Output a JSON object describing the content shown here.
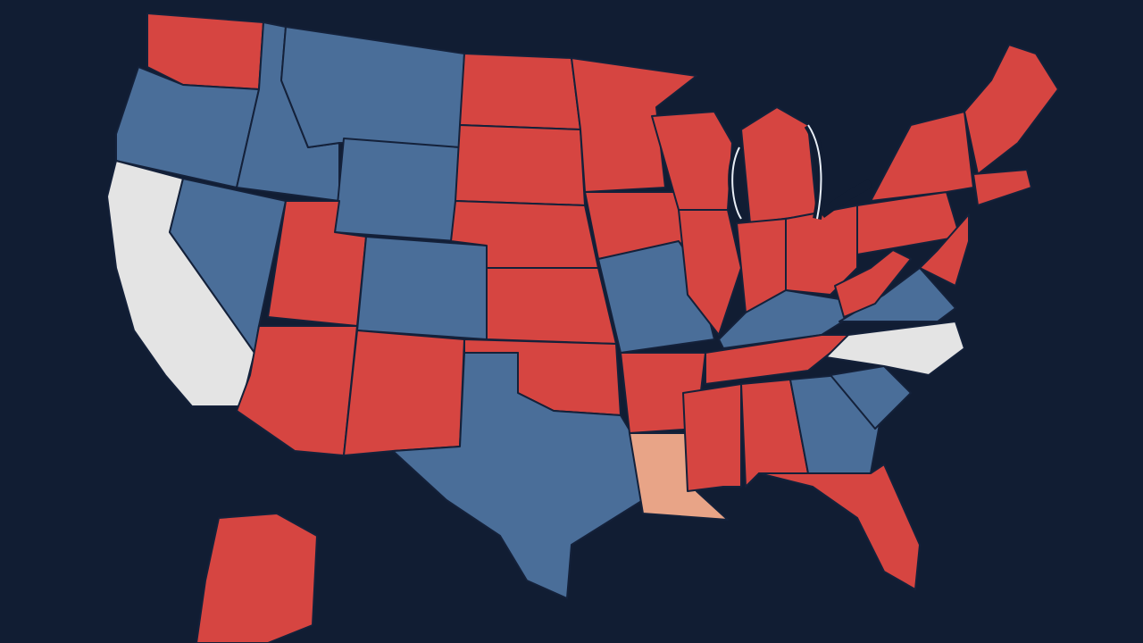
{
  "map": {
    "regions": [
      {
        "color": "#d64541"
      },
      {
        "color": "#4a6e99"
      },
      {
        "color": "#e4e4e4"
      },
      {
        "color": "#4a6e99"
      },
      {
        "color": "#4a6e99"
      },
      {
        "color": "#4a6e99"
      },
      {
        "color": "#4a6e99"
      },
      {
        "color": "#d64541"
      },
      {
        "color": "#d64541"
      },
      {
        "color": "#4a6e99"
      },
      {
        "color": "#d64541"
      },
      {
        "color": "#d64541"
      },
      {
        "color": "#d64541"
      },
      {
        "color": "#d64541"
      },
      {
        "color": "#d64541"
      },
      {
        "color": "#d64541"
      },
      {
        "color": "#4a6e99"
      },
      {
        "color": "#d64541"
      },
      {
        "color": "#d64541"
      },
      {
        "color": "#4a6e99"
      },
      {
        "color": "#d64541"
      },
      {
        "color": "#e8a487"
      },
      {
        "color": "#d64541"
      },
      {
        "color": "#d64541"
      },
      {
        "color": "#d64541"
      },
      {
        "color": "#d64541"
      },
      {
        "color": "#d64541"
      },
      {
        "color": "#4a6e99"
      },
      {
        "color": "#d64541"
      },
      {
        "color": "#d64541"
      },
      {
        "color": "#d64541"
      },
      {
        "color": "#4a6e99"
      },
      {
        "color": "#d64541"
      },
      {
        "color": "#4a6e99"
      },
      {
        "color": "#e4e4e4"
      },
      {
        "color": "#4a6e99"
      },
      {
        "color": "#d64541"
      },
      {
        "color": "#d64541"
      },
      {
        "color": "#d64541"
      },
      {
        "color": "#d64541"
      },
      {
        "color": "#d64541"
      },
      {
        "color": "#d64541"
      },
      {
        "color": "#d64541"
      }
    ]
  }
}
